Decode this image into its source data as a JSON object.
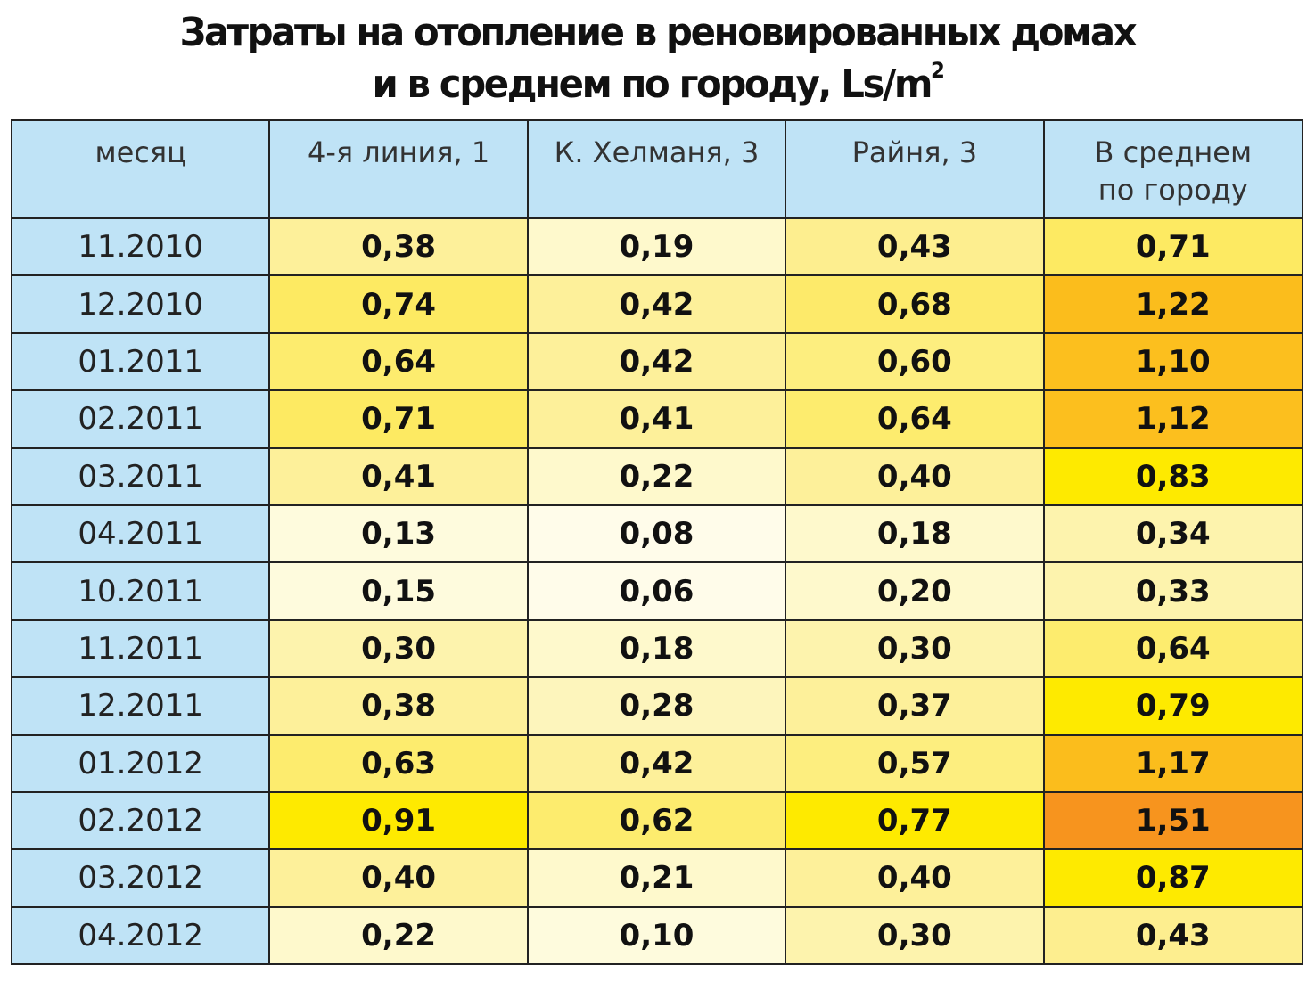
{
  "chart_data": {
    "type": "table",
    "title_line1": "Затраты на отопление в реновированных домах",
    "title_line2": "и в среднем по городу, Ls/m",
    "title_sup": "2",
    "headers": [
      "месяц",
      "4-я линия, 1",
      "К. Хелманя, 3",
      "Райня, 3",
      "В среднем по городу"
    ],
    "header_last_line1": "В среднем",
    "header_last_line2": "по городу",
    "rows": [
      {
        "month": "11.2010",
        "values": [
          "0,38",
          "0,19",
          "0,43",
          "0,71"
        ],
        "colors": [
          "#fdf09a",
          "#fef9cc",
          "#fdee8f",
          "#fdea62"
        ]
      },
      {
        "month": "12.2010",
        "values": [
          "0,74",
          "0,42",
          "0,68",
          "1,22"
        ],
        "colors": [
          "#fdea62",
          "#fdf09a",
          "#fdea6a",
          "#fbbd1c"
        ]
      },
      {
        "month": "01.2011",
        "values": [
          "0,64",
          "0,42",
          "0,60",
          "1,10"
        ],
        "colors": [
          "#fdec6e",
          "#fdf09a",
          "#fdee7f",
          "#fcbf1e"
        ]
      },
      {
        "month": "02.2011",
        "values": [
          "0,71",
          "0,41",
          "0,64",
          "1,12"
        ],
        "colors": [
          "#fdea62",
          "#fdf09a",
          "#fdec6e",
          "#fcbf1e"
        ]
      },
      {
        "month": "03.2011",
        "values": [
          "0,41",
          "0,22",
          "0,40",
          "0,83"
        ],
        "colors": [
          "#fdf09a",
          "#fef9cc",
          "#fdf09a",
          "#feea00"
        ]
      },
      {
        "month": "04.2011",
        "values": [
          "0,13",
          "0,08",
          "0,18",
          "0,34"
        ],
        "colors": [
          "#fefbdd",
          "#fffcea",
          "#fef9cc",
          "#fdf3ad"
        ]
      },
      {
        "month": "10.2011",
        "values": [
          "0,15",
          "0,06",
          "0,20",
          "0,33"
        ],
        "colors": [
          "#fefbdd",
          "#fffcea",
          "#fef9cc",
          "#fdf3ad"
        ]
      },
      {
        "month": "11.2011",
        "values": [
          "0,30",
          "0,18",
          "0,30",
          "0,64"
        ],
        "colors": [
          "#fdf3ad",
          "#fef9cc",
          "#fdf3ad",
          "#fdec6e"
        ]
      },
      {
        "month": "12.2011",
        "values": [
          "0,38",
          "0,28",
          "0,37",
          "0,79"
        ],
        "colors": [
          "#fdf09a",
          "#fdf5bc",
          "#fdf09a",
          "#feea00"
        ]
      },
      {
        "month": "01.2012",
        "values": [
          "0,63",
          "0,42",
          "0,57",
          "1,17"
        ],
        "colors": [
          "#fdec6e",
          "#fdf09a",
          "#fdee7f",
          "#fbbd1c"
        ]
      },
      {
        "month": "02.2012",
        "values": [
          "0,91",
          "0,62",
          "0,77",
          "1,51"
        ],
        "colors": [
          "#feea00",
          "#fdec6e",
          "#feea00",
          "#f7941e"
        ]
      },
      {
        "month": "03.2012",
        "values": [
          "0,40",
          "0,21",
          "0,40",
          "0,87"
        ],
        "colors": [
          "#fdf09a",
          "#fef9cc",
          "#fdf09a",
          "#feea00"
        ]
      },
      {
        "month": "04.2012",
        "values": [
          "0,22",
          "0,10",
          "0,30",
          "0,43"
        ],
        "colors": [
          "#fef9cc",
          "#fefbdd",
          "#fdf3ad",
          "#fdee8f"
        ]
      }
    ]
  }
}
